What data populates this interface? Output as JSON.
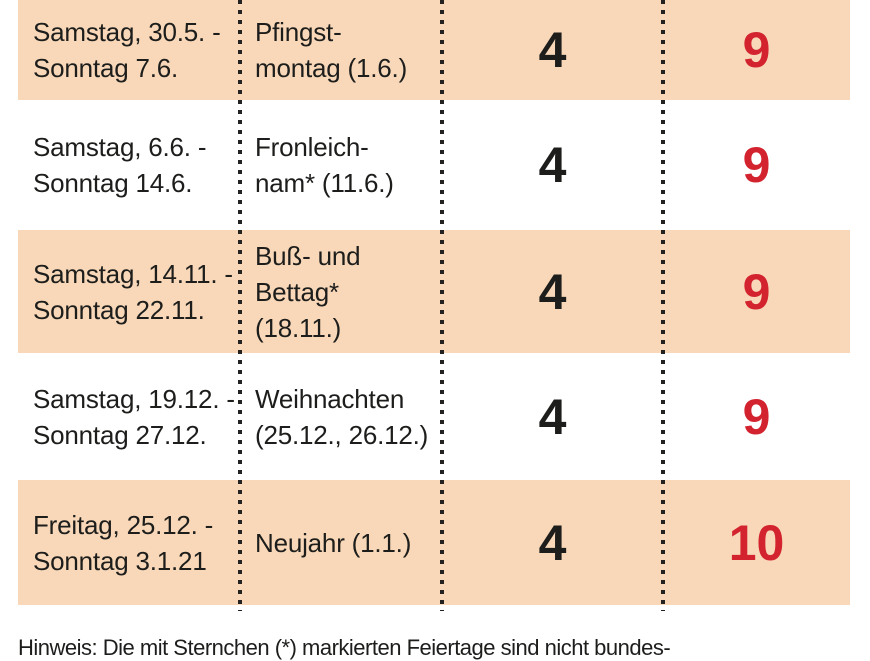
{
  "chart_data": {
    "type": "table",
    "rows": [
      {
        "period": "Samstag, 30.5. -\nSonntag 7.6.",
        "holiday": "Pfingst-\nmontag (1.6.)",
        "vacation_days": 4,
        "days_off": 9
      },
      {
        "period": "Samstag, 6.6. -\nSonntag 14.6.",
        "holiday": "Fronleich-\nnam* (11.6.)",
        "vacation_days": 4,
        "days_off": 9
      },
      {
        "period": "Samstag, 14.11. -\nSonntag 22.11.",
        "holiday": "Buß- und\nBettag*\n(18.11.)",
        "vacation_days": 4,
        "days_off": 9
      },
      {
        "period": "Samstag, 19.12. -\nSonntag 27.12.",
        "holiday": "Weihnachten\n(25.12., 26.12.)",
        "vacation_days": 4,
        "days_off": 9
      },
      {
        "period": "Freitag, 25.12. -\nSonntag 3.1.21",
        "holiday": "Neujahr (1.1.)",
        "vacation_days": 4,
        "days_off": 10
      }
    ]
  },
  "note": "Hinweis: Die mit Sternchen (*) markierten Feiertage sind nicht bundes-",
  "colors": {
    "row_shaded_bg": "#f8d8b9",
    "highlight_red": "#d2232e",
    "text_dark": "#1d1d1b",
    "dot_color": "#242220"
  }
}
